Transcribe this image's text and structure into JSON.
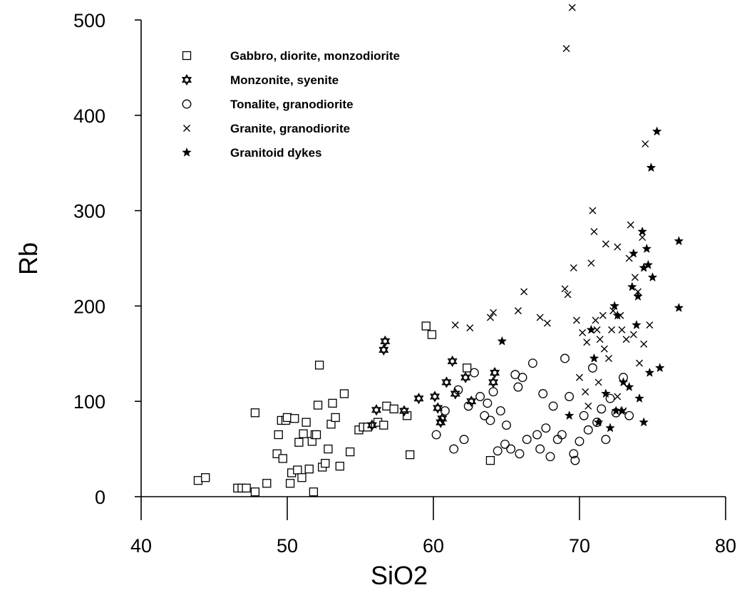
{
  "chart_data": {
    "type": "scatter",
    "title": "",
    "xlabel": "SiO2",
    "ylabel": "Rb",
    "xlim": [
      40,
      80
    ],
    "ylim": [
      0,
      500
    ],
    "x_ticks": [
      "40",
      "50",
      "60",
      "70",
      "80"
    ],
    "y_ticks": [
      "0",
      "100",
      "200",
      "300",
      "400",
      "500"
    ],
    "grid": false,
    "legend_position": "top-left",
    "series": [
      {
        "name": "Gabbro, diorite, monzodiorite",
        "marker": "square",
        "x": [
          43.9,
          44.4,
          46.6,
          46.9,
          47.2,
          47.8,
          47.8,
          48.6,
          49.3,
          49.4,
          49.6,
          49.7,
          49.9,
          50.0,
          50.2,
          50.3,
          50.5,
          50.7,
          50.8,
          51.0,
          51.1,
          51.3,
          51.5,
          51.7,
          51.8,
          51.9,
          52.0,
          52.1,
          52.2,
          52.4,
          52.6,
          52.8,
          53.0,
          53.1,
          53.3,
          53.6,
          53.9,
          54.3,
          54.9,
          55.2,
          55.5,
          56.2,
          56.6,
          56.8,
          57.3,
          58.2,
          58.4,
          59.5,
          59.9,
          62.3,
          63.9
        ],
        "y": [
          17,
          20,
          9,
          9,
          9,
          5,
          88,
          14,
          45,
          65,
          80,
          40,
          80,
          83,
          14,
          25,
          82,
          28,
          57,
          20,
          66,
          78,
          29,
          58,
          5,
          65,
          65,
          96,
          138,
          31,
          35,
          50,
          76,
          98,
          83,
          32,
          108,
          47,
          70,
          73,
          73,
          78,
          75,
          95,
          92,
          85,
          44,
          179,
          170,
          135,
          38
        ]
      },
      {
        "name": "Monzonite, syenite",
        "marker": "star6",
        "x": [
          55.8,
          56.1,
          56.6,
          56.7,
          58.0,
          59.0,
          60.1,
          60.3,
          60.5,
          60.6,
          60.9,
          61.3,
          61.5,
          62.2,
          62.6,
          64.1,
          64.2
        ],
        "y": [
          75,
          91,
          154,
          163,
          90,
          103,
          105,
          93,
          78,
          82,
          120,
          142,
          108,
          125,
          100,
          120,
          130
        ]
      },
      {
        "name": "Tonalite, granodiorite",
        "marker": "circle",
        "x": [
          60.2,
          60.8,
          61.4,
          61.7,
          62.1,
          62.4,
          62.8,
          63.2,
          63.5,
          63.7,
          63.9,
          64.1,
          64.4,
          64.6,
          64.9,
          65.0,
          65.3,
          65.6,
          65.8,
          65.9,
          66.1,
          66.4,
          66.8,
          67.1,
          67.3,
          67.5,
          67.7,
          68.0,
          68.2,
          68.5,
          68.8,
          69.0,
          69.3,
          69.6,
          69.7,
          70.0,
          70.3,
          70.6,
          70.9,
          71.2,
          71.5,
          71.8,
          72.1,
          72.5,
          73.0,
          73.4
        ],
        "y": [
          65,
          90,
          50,
          112,
          60,
          95,
          130,
          105,
          85,
          98,
          80,
          110,
          48,
          90,
          55,
          75,
          50,
          128,
          115,
          45,
          125,
          60,
          140,
          65,
          50,
          108,
          72,
          42,
          95,
          60,
          65,
          145,
          105,
          45,
          38,
          58,
          85,
          70,
          135,
          78,
          92,
          60,
          103,
          88,
          125,
          85
        ]
      },
      {
        "name": "Granite, granodiorite",
        "marker": "x",
        "x": [
          61.5,
          62.5,
          63.9,
          64.1,
          65.8,
          66.2,
          67.3,
          67.8,
          69.0,
          69.2,
          69.6,
          69.8,
          70.2,
          70.5,
          70.8,
          71.0,
          71.2,
          71.4,
          71.6,
          71.8,
          72.0,
          72.3,
          72.6,
          72.9,
          73.2,
          73.5,
          73.8,
          74.0,
          74.3,
          74.5,
          74.8,
          69.5,
          69.1,
          70.0,
          70.4,
          70.9,
          71.1,
          71.7,
          72.2,
          72.6,
          73.0,
          73.4,
          73.7,
          74.1,
          74.4,
          70.6,
          71.3,
          72.8
        ],
        "y": [
          180,
          177,
          188,
          193,
          195,
          215,
          188,
          182,
          218,
          212,
          240,
          185,
          172,
          162,
          245,
          278,
          175,
          165,
          190,
          265,
          145,
          195,
          262,
          175,
          165,
          285,
          230,
          215,
          272,
          370,
          180,
          513,
          470,
          125,
          110,
          300,
          185,
          155,
          175,
          105,
          90,
          250,
          170,
          140,
          160,
          95,
          120,
          190
        ]
      },
      {
        "name": "Granitoid dykes",
        "marker": "star5",
        "x": [
          64.7,
          69.3,
          70.8,
          71.0,
          71.3,
          71.8,
          72.1,
          72.6,
          72.9,
          73.4,
          73.7,
          73.9,
          74.0,
          74.3,
          74.4,
          74.6,
          74.7,
          74.9,
          75.0,
          75.3,
          75.5,
          76.8,
          76.8,
          72.4,
          73.0,
          73.6,
          74.1,
          74.4,
          74.8,
          72.5
        ],
        "y": [
          163,
          85,
          175,
          145,
          78,
          108,
          72,
          190,
          90,
          115,
          255,
          180,
          210,
          278,
          240,
          260,
          243,
          345,
          230,
          383,
          135,
          268,
          198,
          200,
          120,
          220,
          103,
          78,
          130,
          90
        ]
      }
    ]
  }
}
